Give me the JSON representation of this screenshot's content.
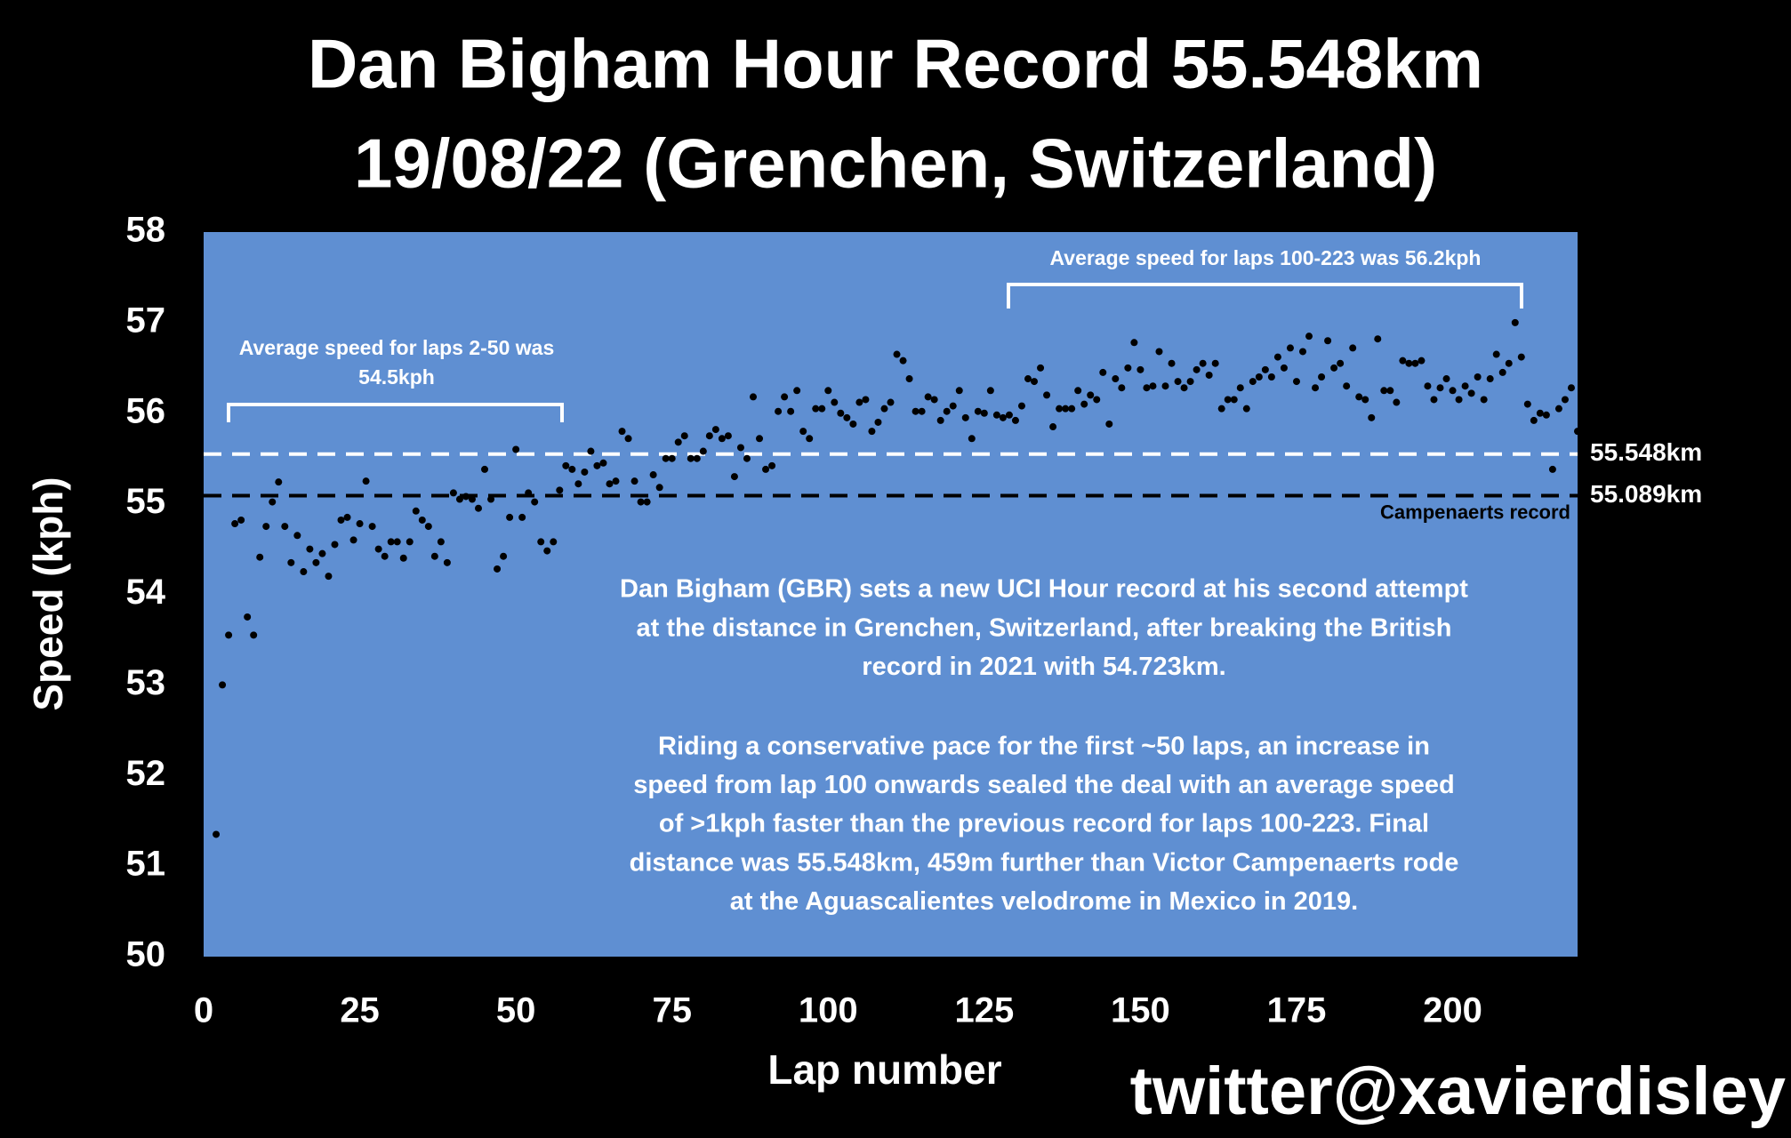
{
  "chart_data": {
    "type": "scatter",
    "title": [
      "Dan Bigham Hour Record 55.548km",
      "19/08/22 (Grenchen, Switzerland)"
    ],
    "x_label": "Lap number",
    "y_label": "Speed (kph)",
    "xlim": [
      0,
      220
    ],
    "xticks": [
      0,
      25,
      50,
      75,
      100,
      125,
      150,
      175,
      200
    ],
    "ylim": [
      50,
      58
    ],
    "yticks": [
      50,
      51,
      52,
      53,
      54,
      55,
      56,
      57,
      58
    ],
    "background": "#5f8fd2",
    "color": "#000000",
    "x": [
      2,
      3,
      4,
      5,
      6,
      7,
      8,
      9,
      10,
      11,
      12,
      13,
      14,
      15,
      16,
      17,
      18,
      19,
      20,
      21,
      22,
      23,
      24,
      25,
      26,
      27,
      28,
      29,
      30,
      31,
      32,
      33,
      34,
      35,
      36,
      37,
      38,
      39,
      40,
      41,
      42,
      43,
      44,
      45,
      46,
      47,
      48,
      49,
      50,
      51,
      52,
      53,
      54,
      55,
      56,
      57,
      58,
      59,
      60,
      61,
      62,
      63,
      64,
      65,
      66,
      67,
      68,
      69,
      70,
      71,
      72,
      73,
      74,
      75,
      76,
      77,
      78,
      79,
      80,
      81,
      82,
      83,
      84,
      85,
      86,
      87,
      88,
      89,
      90,
      91,
      92,
      93,
      94,
      95,
      96,
      97,
      98,
      99,
      100,
      101,
      102,
      103,
      104,
      105,
      106,
      107,
      108,
      109,
      110,
      111,
      112,
      113,
      114,
      115,
      116,
      117,
      118,
      119,
      120,
      121,
      122,
      123,
      124,
      125,
      126,
      127,
      128,
      129,
      130,
      131,
      132,
      133,
      134,
      135,
      136,
      137,
      138,
      139,
      140,
      141,
      142,
      143,
      144,
      145,
      146,
      147,
      148,
      149,
      150,
      151,
      152,
      153,
      154,
      155,
      156,
      157,
      158,
      159,
      160,
      161,
      162,
      163,
      164,
      165,
      166,
      167,
      168,
      169,
      170,
      171,
      172,
      173,
      174,
      175,
      176,
      177,
      178,
      179,
      180,
      181,
      182,
      183,
      184,
      185,
      186,
      187,
      188,
      189,
      190,
      191,
      192,
      193,
      194,
      195,
      196,
      197,
      198,
      199,
      200,
      201,
      202,
      203,
      204,
      205,
      206,
      207,
      208,
      209,
      210,
      211,
      212,
      213,
      214,
      215,
      216,
      217,
      218,
      219,
      220
    ],
    "values": [
      51.35,
      53.0,
      53.55,
      54.78,
      54.82,
      53.75,
      53.55,
      54.41,
      54.75,
      55.02,
      55.24,
      54.75,
      54.35,
      54.65,
      54.25,
      54.5,
      54.35,
      54.45,
      54.2,
      54.55,
      54.82,
      54.85,
      54.6,
      54.78,
      55.25,
      54.75,
      54.5,
      54.42,
      54.58,
      54.58,
      54.4,
      54.58,
      54.92,
      54.82,
      54.75,
      54.42,
      54.58,
      54.35,
      55.12,
      55.05,
      55.08,
      55.05,
      54.95,
      55.38,
      55.05,
      54.28,
      54.42,
      54.85,
      55.6,
      54.85,
      55.12,
      55.02,
      54.58,
      54.48,
      54.58,
      55.15,
      55.42,
      55.38,
      55.22,
      55.35,
      55.58,
      55.42,
      55.45,
      55.22,
      55.25,
      55.8,
      55.72,
      55.25,
      55.02,
      55.02,
      55.32,
      55.18,
      55.5,
      55.5,
      55.68,
      55.75,
      55.5,
      55.5,
      55.58,
      55.75,
      55.82,
      55.72,
      55.75,
      55.3,
      55.62,
      55.5,
      56.18,
      55.72,
      55.38,
      55.42,
      56.02,
      56.18,
      56.02,
      56.25,
      55.8,
      55.72,
      56.05,
      56.05,
      56.25,
      56.12,
      56.0,
      55.95,
      55.88,
      56.12,
      56.15,
      55.8,
      55.9,
      56.05,
      56.12,
      56.65,
      56.58,
      56.38,
      56.02,
      56.02,
      56.18,
      56.15,
      55.92,
      56.02,
      56.08,
      56.25,
      55.95,
      55.72,
      56.02,
      56.0,
      56.25,
      55.98,
      55.95,
      55.98,
      55.92,
      56.08,
      56.38,
      56.35,
      56.5,
      56.2,
      55.85,
      56.05,
      56.05,
      56.05,
      56.25,
      56.1,
      56.2,
      56.15,
      56.45,
      55.88,
      56.38,
      56.28,
      56.5,
      56.78,
      56.48,
      56.28,
      56.3,
      56.68,
      56.3,
      56.55,
      56.35,
      56.28,
      56.35,
      56.48,
      56.55,
      56.42,
      56.55,
      56.05,
      56.15,
      56.15,
      56.28,
      56.05,
      56.35,
      56.4,
      56.48,
      56.4,
      56.62,
      56.5,
      56.72,
      56.35,
      56.68,
      56.85,
      56.28,
      56.4,
      56.8,
      56.5,
      56.55,
      56.3,
      56.72,
      56.18,
      56.15,
      55.95,
      56.82,
      56.25,
      56.25,
      56.12,
      56.58,
      56.55,
      56.55,
      56.58,
      56.3,
      56.15,
      56.28,
      56.38,
      56.25,
      56.15,
      56.3,
      56.22,
      56.4,
      56.15,
      56.38,
      56.65,
      56.45,
      56.55,
      57.0,
      56.62,
      56.1,
      55.92,
      56.0,
      55.98,
      55.38,
      56.05,
      56.15,
      56.28,
      55.8
    ],
    "reference_lines": [
      {
        "value": 55.548,
        "label": "55.548km",
        "color": "#ffffff"
      },
      {
        "value": 55.089,
        "label": "55.089km",
        "color": "#000000",
        "note": "Campenaerts record"
      }
    ],
    "annotations": [
      {
        "lines": [
          "Average speed for laps 2-50 was",
          "54.5kph"
        ]
      },
      {
        "lines": [
          "Average speed for laps 100-223 was 56.2kph"
        ]
      }
    ],
    "description": [
      [
        "Dan Bigham (GBR) sets a new UCI Hour record at his second attempt",
        "at the distance in Grenchen, Switzerland, after breaking the British",
        "record in 2021 with 54.723km."
      ],
      [
        "Riding a conservative pace for the first ~50 laps, an increase in",
        "speed from lap 100 onwards sealed the deal with an average speed",
        "of >1kph faster than the previous record for laps 100-223. Final",
        "distance was 55.548km, 459m further than Victor Campenaerts rode",
        "at the Aguascalientes velodrome in Mexico in 2019."
      ]
    ],
    "credit": "twitter@xavierdisley"
  }
}
